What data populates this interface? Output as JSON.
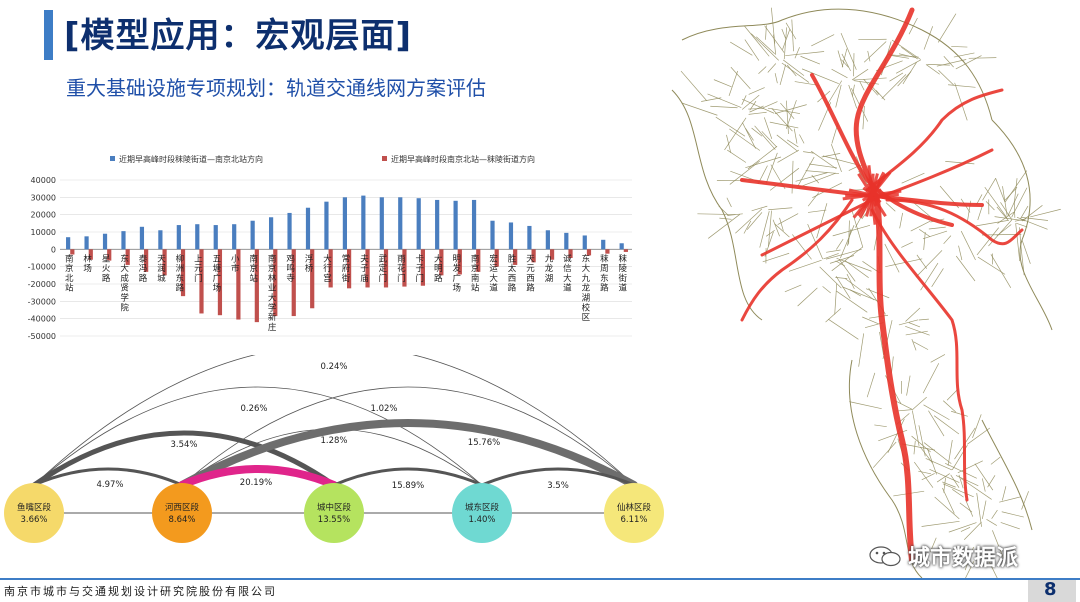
{
  "slide": {
    "title": "[模型应用：宏观层面]",
    "subtitle": "重大基础设施专项规划：轨道交通线网方案评估",
    "footer": "南京市城市与交通规划设计研究院股份有限公司",
    "page_number": "8",
    "watermark": "城市数据派",
    "accent_color": "#3d7dc6",
    "title_color": "#0d2f6e"
  },
  "chart_data": {
    "type": "bar",
    "legend": [
      "近期早高峰时段秣陵街道—南京北站方向",
      "近期早高峰时段南京北站—秣陵街道方向"
    ],
    "categories": [
      "南京北站",
      "林场",
      "星火路",
      "东大成贤学院",
      "泰冯路",
      "天润城",
      "柳洲东路",
      "上元门",
      "五塘广场",
      "小市",
      "南京站",
      "南京林业大学新庄",
      "鸡鸣寺",
      "浮桥",
      "大行宫",
      "常府街",
      "夫子庙",
      "武定门",
      "雨花门",
      "卡子门",
      "大明路",
      "明发广场",
      "南京南站",
      "宏运大道",
      "胜太西路",
      "天元西路",
      "九龙湖",
      "诚信大道",
      "东大九龙湖校区",
      "秣周东路",
      "秣陵街道"
    ],
    "series": [
      {
        "name": "近期早高峰时段秣陵街道—南京北站方向",
        "color": "#4a7ebf",
        "values": [
          7000,
          7500,
          9000,
          10500,
          13000,
          11000,
          14000,
          14500,
          14000,
          14500,
          16500,
          18500,
          21000,
          24000,
          27500,
          30000,
          31000,
          30000,
          30000,
          29500,
          28500,
          28000,
          28500,
          16500,
          15500,
          13500,
          11000,
          9500,
          8000,
          5500,
          3500
        ]
      },
      {
        "name": "近期早高峰时段南京北站—秣陵街道方向",
        "color": "#c0504d",
        "values": [
          -3000,
          -6000,
          -6500,
          -9000,
          -13000,
          -15000,
          -27000,
          -37000,
          -38000,
          -40500,
          -42000,
          -38500,
          -38500,
          -34000,
          -22000,
          -22500,
          -22000,
          -22000,
          -21500,
          -21000,
          -15000,
          -14500,
          -13000,
          -10000,
          -9000,
          -7500,
          -6000,
          -5000,
          -3500,
          -2500,
          -1500
        ]
      }
    ],
    "ylim": [
      -50000,
      40000
    ],
    "yticks": [
      40000,
      30000,
      20000,
      10000,
      0,
      -10000,
      -20000,
      -30000,
      -40000,
      -50000
    ],
    "grid": true,
    "legend_position": "top"
  },
  "flow_diagram": {
    "nodes": [
      {
        "name": "鱼嘴区段",
        "value": "3.66%",
        "color": "#f5d96a"
      },
      {
        "name": "河西区段",
        "value": "8.64%",
        "color": "#f39a1e"
      },
      {
        "name": "城中区段",
        "value": "13.55%",
        "color": "#b5e35f"
      },
      {
        "name": "城东区段",
        "value": "1.40%",
        "color": "#6fd9d2"
      },
      {
        "name": "仙林区段",
        "value": "6.11%",
        "color": "#f5e77a"
      }
    ],
    "links": [
      {
        "from": 0,
        "to": 4,
        "label": "0.24%"
      },
      {
        "from": 0,
        "to": 3,
        "label": "0.26%"
      },
      {
        "from": 1,
        "to": 4,
        "label": "1.02%"
      },
      {
        "from": 0,
        "to": 2,
        "label": "3.54%"
      },
      {
        "from": 1,
        "to": 3,
        "label": "1.28%"
      },
      {
        "from": 1,
        "to": 4,
        "label": "15.76%"
      },
      {
        "from": 0,
        "to": 1,
        "label": "4.97%"
      },
      {
        "from": 1,
        "to": 2,
        "label": "20.19%"
      },
      {
        "from": 2,
        "to": 3,
        "label": "15.89%"
      },
      {
        "from": 3,
        "to": 4,
        "label": "3.5%"
      }
    ]
  },
  "map": {
    "road_color": "#8f8a5a",
    "route_color": "#e8332a"
  }
}
